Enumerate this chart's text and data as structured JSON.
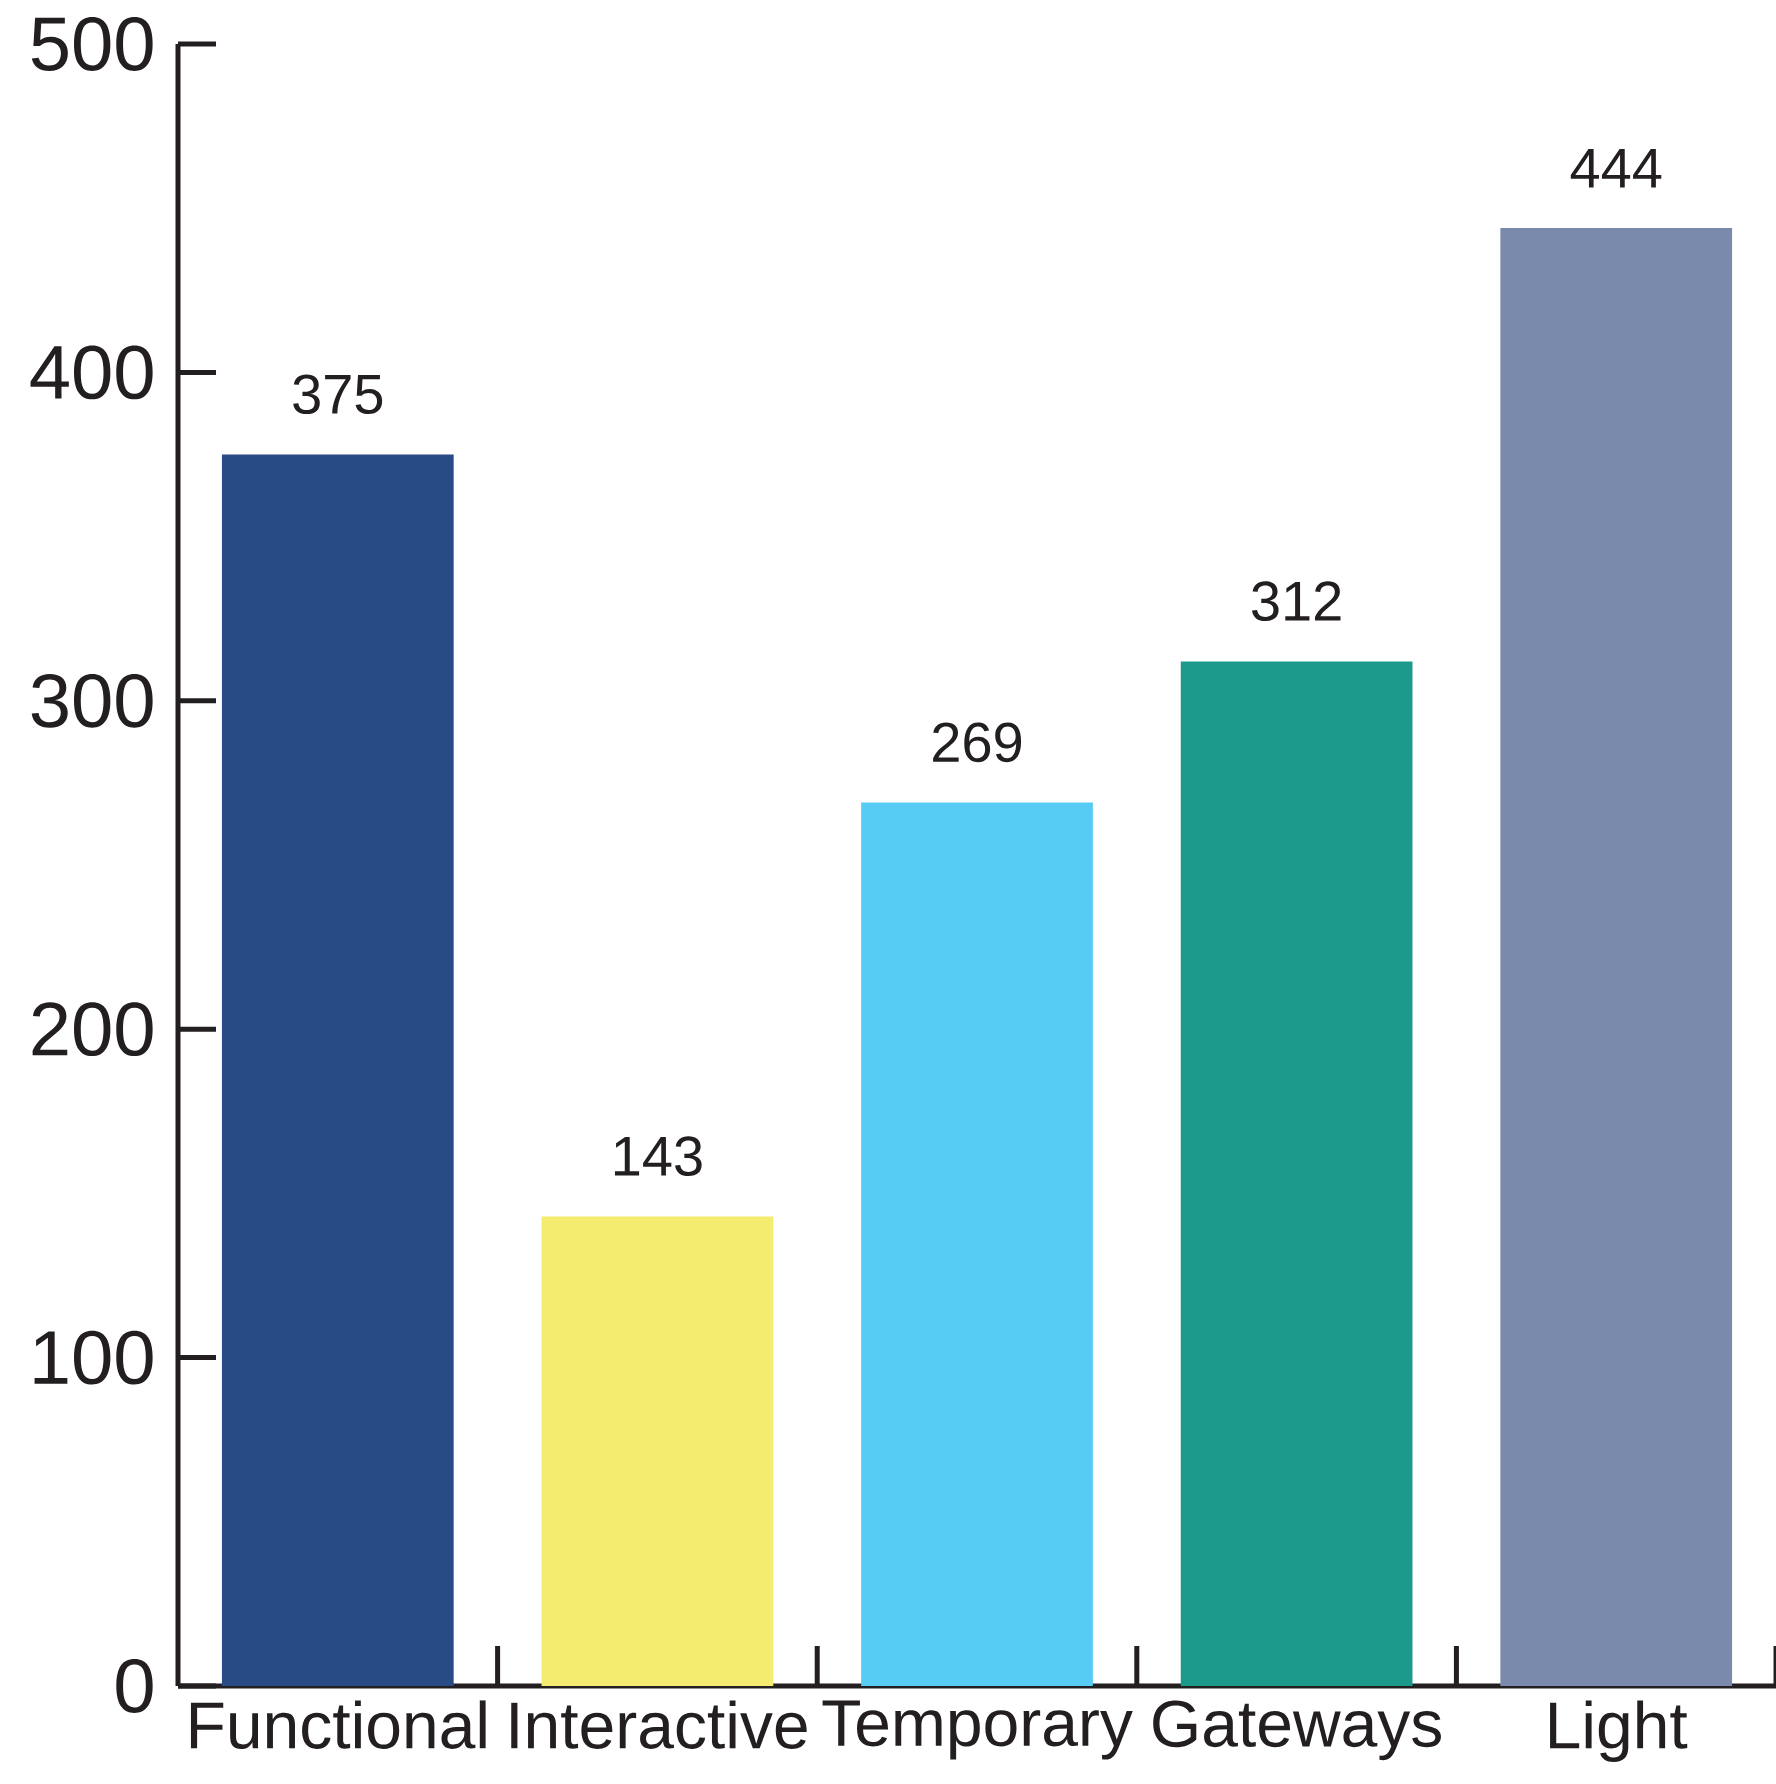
{
  "chart_data": {
    "type": "bar",
    "categories": [
      "Functional",
      "Interactive",
      "Temporary",
      "Gateways",
      "Light"
    ],
    "values": [
      375,
      143,
      269,
      312,
      444
    ],
    "colors": [
      "#284a85",
      "#f4ec6e",
      "#56cbf4",
      "#1b998b",
      "#7a8aad"
    ],
    "ylim": [
      0,
      500
    ],
    "yticks": [
      0,
      100,
      200,
      300,
      400,
      500
    ],
    "data_labels": true
  }
}
